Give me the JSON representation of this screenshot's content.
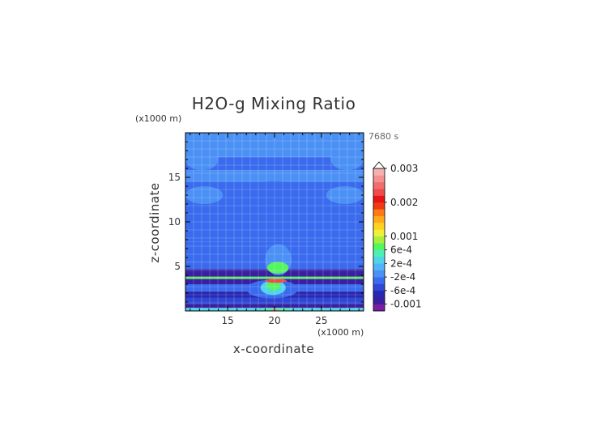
{
  "chart_data": {
    "type": "heatmap",
    "title": "H2O-g Mixing Ratio",
    "xlabel": "x-coordinate",
    "ylabel": "z-coordinate",
    "x_unit": "(x1000 m)",
    "y_unit": "(x1000 m)",
    "time_label": "7680 s",
    "xlim": [
      10.5,
      29.5
    ],
    "ylim": [
      0,
      20
    ],
    "x_ticks": [
      15,
      20,
      25
    ],
    "y_ticks": [
      5,
      10,
      15
    ],
    "grid": true,
    "colorbar": {
      "placement": "right",
      "colors": [
        "#7B1FA2",
        "#3A1FA0",
        "#2828B0",
        "#2F47D6",
        "#3A6BEF",
        "#4A90F5",
        "#52B4F8",
        "#4FD4E8",
        "#4CEFB5",
        "#55F560",
        "#A8F03C",
        "#F0F03A",
        "#FFD21F",
        "#FFAA1A",
        "#FF7A14",
        "#F03A14",
        "#E61414",
        "#F04A4A",
        "#F06E6E",
        "#F59090",
        "#F7B0B0"
      ],
      "tick_labels": [
        "0.003",
        "0.002",
        "0.001",
        "6e-4",
        "2e-4",
        "-2e-4",
        "-6e-4",
        "-0.001"
      ],
      "tick_values": [
        0.003,
        0.002,
        0.001,
        0.0006,
        0.0002,
        -0.0002,
        -0.0006,
        -0.001
      ],
      "range": [
        -0.0012,
        0.003
      ],
      "extend": "max"
    },
    "bands": [
      {
        "z": [
          0,
          0.35
        ],
        "value": 0.00025
      },
      {
        "z": [
          0.35,
          0.8
        ],
        "value": -0.0008
      },
      {
        "z": [
          0.8,
          1.5
        ],
        "value": -0.0005
      },
      {
        "z": [
          1.5,
          2.2
        ],
        "value": -0.0007
      },
      {
        "z": [
          2.2,
          3.0
        ],
        "value": -0.0004
      },
      {
        "z": [
          3.0,
          3.6
        ],
        "value": -0.0008
      },
      {
        "z": [
          3.6,
          3.85
        ],
        "value": 0.0007
      },
      {
        "z": [
          3.85,
          4.7
        ],
        "value": -0.0008
      },
      {
        "z": [
          4.7,
          5.6
        ],
        "value": -0.0004
      },
      {
        "z": [
          5.6,
          7.8
        ],
        "value": -0.0002
      },
      {
        "z": [
          7.8,
          10.5
        ],
        "value": -0.0003
      },
      {
        "z": [
          10.5,
          12.0
        ],
        "value": -0.0002
      },
      {
        "z": [
          12.0,
          14.5
        ],
        "value": -0.0003
      },
      {
        "z": [
          14.5,
          15.8
        ],
        "value": -0.0001
      },
      {
        "z": [
          15.8,
          17.3
        ],
        "value": -0.0003
      },
      {
        "z": [
          17.3,
          20
        ],
        "value": -0.0001
      }
    ],
    "features": [
      {
        "x": [
          19.0,
          21.8
        ],
        "z": [
          4.0,
          7.5
        ],
        "value": -0.0001
      },
      {
        "x": [
          19.2,
          21.5
        ],
        "z": [
          4.2,
          5.5
        ],
        "value": 0.0006
      },
      {
        "x": [
          17.0,
          22.5
        ],
        "z": [
          1.4,
          3.5
        ],
        "value": -0.0002
      },
      {
        "x": [
          18.5,
          21.2
        ],
        "z": [
          1.8,
          3.4
        ],
        "value": 0.0002
      },
      {
        "x": [
          19.2,
          20.6
        ],
        "z": [
          2.3,
          3.5
        ],
        "value": 0.0007
      },
      {
        "x": [
          19.0,
          21.3
        ],
        "z": [
          3.15,
          3.6
        ],
        "value": 0.0022
      },
      {
        "x": [
          18.5,
          22.0
        ],
        "z": [
          0.0,
          0.35
        ],
        "value": 0.0004
      },
      {
        "x": [
          19.6,
          20.4
        ],
        "z": [
          0.0,
          0.2
        ],
        "value": 0.0026
      },
      {
        "x": [
          10.5,
          14.0
        ],
        "z": [
          15.8,
          18.2
        ],
        "value": -0.0001
      },
      {
        "x": [
          26.0,
          29.5
        ],
        "z": [
          15.8,
          18.2
        ],
        "value": -0.0001
      },
      {
        "x": [
          10.5,
          14.5
        ],
        "z": [
          12.0,
          14.0
        ],
        "value": -0.0001
      },
      {
        "x": [
          25.5,
          29.5
        ],
        "z": [
          12.0,
          14.0
        ],
        "value": -0.0001
      },
      {
        "x": [
          18.0,
          22.0
        ],
        "z": [
          13.6,
          14.6
        ],
        "value": -0.0004
      }
    ]
  }
}
